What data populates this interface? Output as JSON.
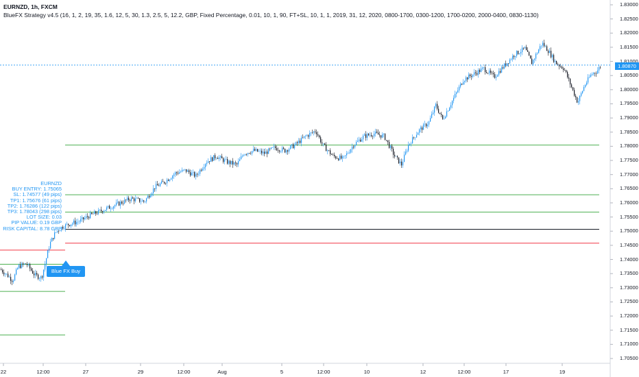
{
  "header": {
    "symbol_line": "EURNZD, 1h, FXCM",
    "strategy_line": "BlueFX Strategy v4.5 (16, 1, 2, 19, 35, 1.6, 12, 5, 30, 1.3, 2.5, 5, 12.2, GBP, Fixed Percentage, 0.01, 10, 1, 90, FT+SL, 10, 1, 1, 2019, 31, 12, 2020, 0800-1700, 0300-1200, 1700-0200, 2000-0400, 0830-1130)"
  },
  "info_panel": {
    "lines": [
      "EURNZD",
      "BUY ENTRY: 1.75065",
      "SL: 1.74577 (49 pips)",
      "TP1: 1.75676 (61 pips)",
      "TP2: 1.76286 (122 pips)",
      "TP3: 1.78043 (298 pips)",
      "LOT SIZE: 0.03",
      "PIP VALUE: 0.19 GBP",
      "RISK CAPITAL: 8.78 GBP"
    ]
  },
  "signal": {
    "label": "Blue FX Buy"
  },
  "price_axis": {
    "labels": [
      "1.83000",
      "1.82500",
      "1.82000",
      "1.81500",
      "1.81000",
      "1.80500",
      "1.80000",
      "1.79500",
      "1.79000",
      "1.78500",
      "1.78000",
      "1.77500",
      "1.77000",
      "1.76500",
      "1.76000",
      "1.75500",
      "1.75000",
      "1.74500",
      "1.74000",
      "1.73500",
      "1.73000",
      "1.72500",
      "1.72000",
      "1.71500",
      "1.71000",
      "1.70500"
    ],
    "current_price": "1.80870"
  },
  "time_axis": {
    "labels": [
      "22",
      "12:00",
      "27",
      "29",
      "12:00",
      "Aug",
      "5",
      "12:00",
      "10",
      "12",
      "12:00",
      "17",
      "19"
    ]
  },
  "chart_data": {
    "type": "candlestick",
    "symbol": "EURNZD",
    "timeframe": "1h",
    "ylim": [
      1.703,
      1.834
    ],
    "current_price": 1.8087,
    "trade_levels": {
      "entry": 1.75065,
      "stop_loss": 1.74577,
      "tp1": 1.75676,
      "tp2": 1.76286,
      "tp3": 1.78043,
      "prior_trade_lines": [
        1.7433,
        1.7383,
        1.7287,
        1.7133
      ]
    },
    "price_path": [
      [
        0,
        1.7365
      ],
      [
        10,
        1.7345
      ],
      [
        18,
        1.7325
      ],
      [
        26,
        1.7375
      ],
      [
        38,
        1.7385
      ],
      [
        50,
        1.7345
      ],
      [
        60,
        1.7335
      ],
      [
        66,
        1.7395
      ],
      [
        72,
        1.7455
      ],
      [
        80,
        1.7495
      ],
      [
        90,
        1.7515
      ],
      [
        100,
        1.7525
      ],
      [
        115,
        1.7535
      ],
      [
        130,
        1.7555
      ],
      [
        150,
        1.7575
      ],
      [
        170,
        1.7595
      ],
      [
        190,
        1.7615
      ],
      [
        210,
        1.7605
      ],
      [
        225,
        1.7655
      ],
      [
        240,
        1.7675
      ],
      [
        255,
        1.7705
      ],
      [
        270,
        1.7715
      ],
      [
        285,
        1.7695
      ],
      [
        300,
        1.7745
      ],
      [
        315,
        1.7765
      ],
      [
        330,
        1.7745
      ],
      [
        345,
        1.7735
      ],
      [
        355,
        1.7775
      ],
      [
        370,
        1.7785
      ],
      [
        385,
        1.7775
      ],
      [
        400,
        1.7795
      ],
      [
        415,
        1.7785
      ],
      [
        430,
        1.7805
      ],
      [
        445,
        1.7835
      ],
      [
        460,
        1.7855
      ],
      [
        470,
        1.7805
      ],
      [
        485,
        1.7765
      ],
      [
        500,
        1.7755
      ],
      [
        515,
        1.7805
      ],
      [
        530,
        1.7835
      ],
      [
        545,
        1.7845
      ],
      [
        560,
        1.7835
      ],
      [
        575,
        1.7765
      ],
      [
        585,
        1.7735
      ],
      [
        595,
        1.7805
      ],
      [
        610,
        1.7855
      ],
      [
        625,
        1.7885
      ],
      [
        635,
        1.7945
      ],
      [
        645,
        1.7895
      ],
      [
        660,
        1.7965
      ],
      [
        675,
        1.8035
      ],
      [
        690,
        1.8055
      ],
      [
        705,
        1.8075
      ],
      [
        720,
        1.8045
      ],
      [
        735,
        1.8085
      ],
      [
        750,
        1.8125
      ],
      [
        765,
        1.8145
      ],
      [
        775,
        1.8095
      ],
      [
        790,
        1.8165
      ],
      [
        800,
        1.8135
      ],
      [
        810,
        1.8095
      ],
      [
        822,
        1.8075
      ],
      [
        832,
        1.8015
      ],
      [
        842,
        1.7955
      ],
      [
        852,
        1.8015
      ],
      [
        862,
        1.8055
      ],
      [
        870,
        1.8065
      ],
      [
        876,
        1.8087
      ]
    ]
  },
  "colors": {
    "up": "#2196f3",
    "down": "#131722",
    "tp": "#4caf50",
    "sl": "#f23645",
    "entry": "#131722",
    "price_line": "#2196f3"
  }
}
